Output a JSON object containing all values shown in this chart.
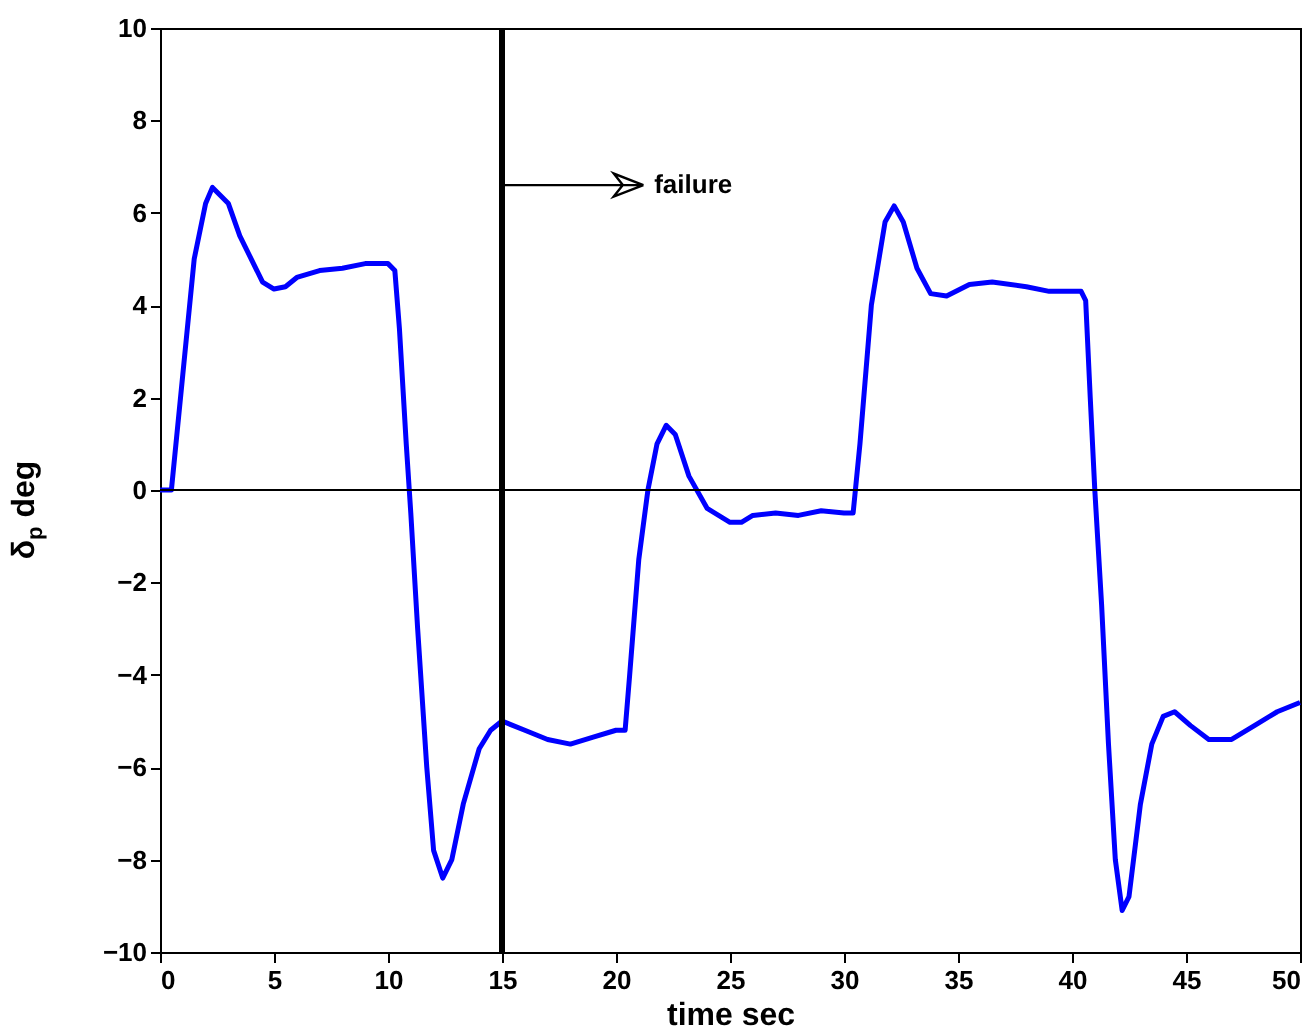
{
  "chart_data": {
    "type": "line",
    "xlabel": "time sec",
    "ylabel": "δ$_{p}$ deg",
    "xlim": [
      0,
      50
    ],
    "ylim": [
      -10,
      10
    ],
    "xticks": [
      0,
      5,
      10,
      15,
      20,
      25,
      30,
      35,
      40,
      45,
      50
    ],
    "yticks": [
      -10,
      -8,
      -6,
      -4,
      -2,
      0,
      2,
      4,
      6,
      8,
      10
    ],
    "grid": false,
    "line_style": "solid",
    "series": [
      {
        "color": "#0000ff",
        "x": [
          0,
          0.5,
          1,
          1.5,
          2,
          2.3,
          3,
          3.5,
          4.5,
          5,
          5.5,
          6,
          7,
          8,
          9,
          10,
          10.3,
          10.5,
          10.8,
          11,
          11.3,
          11.7,
          12,
          12.4,
          12.8,
          13.3,
          14,
          14.5,
          15,
          16,
          17,
          18,
          19,
          20,
          20.4,
          20.6,
          21,
          21.4,
          21.8,
          22.2,
          22.6,
          23.2,
          24,
          25,
          25.5,
          26,
          27,
          28,
          29,
          30,
          30.4,
          30.7,
          31.2,
          31.8,
          32.2,
          32.6,
          33.2,
          33.8,
          34.5,
          35.5,
          36.5,
          38,
          39,
          40.4,
          40.6,
          40.8,
          41,
          41.3,
          41.6,
          41.9,
          42.2,
          42.5,
          43,
          43.5,
          44,
          44.5,
          45.2,
          46,
          47,
          48,
          49,
          50
        ],
        "values": [
          0,
          0,
          2.5,
          5,
          6.2,
          6.55,
          6.2,
          5.5,
          4.5,
          4.35,
          4.4,
          4.6,
          4.75,
          4.8,
          4.9,
          4.9,
          4.75,
          3.5,
          1,
          -0.5,
          -3,
          -6,
          -7.8,
          -8.4,
          -8,
          -6.8,
          -5.6,
          -5.2,
          -5,
          -5.2,
          -5.4,
          -5.5,
          -5.35,
          -5.2,
          -5.2,
          -4,
          -1.5,
          0,
          1,
          1.4,
          1.2,
          0.3,
          -0.4,
          -0.7,
          -0.7,
          -0.55,
          -0.5,
          -0.55,
          -0.45,
          -0.5,
          -0.5,
          1,
          4,
          5.8,
          6.15,
          5.8,
          4.8,
          4.25,
          4.2,
          4.45,
          4.5,
          4.4,
          4.3,
          4.3,
          4.1,
          2,
          0,
          -2.5,
          -5.5,
          -8,
          -9.1,
          -8.8,
          -6.8,
          -5.5,
          -4.9,
          -4.8,
          -5.1,
          -5.4,
          -5.4,
          -5.1,
          -4.8,
          -4.6
        ]
      }
    ],
    "ref_lines": [
      {
        "axis": "y",
        "value": 0,
        "color": "#000000"
      },
      {
        "axis": "x",
        "value": 15,
        "color": "#000000"
      }
    ],
    "annotations": [
      {
        "text": "failure",
        "x": 15,
        "y": 6.6
      }
    ]
  }
}
